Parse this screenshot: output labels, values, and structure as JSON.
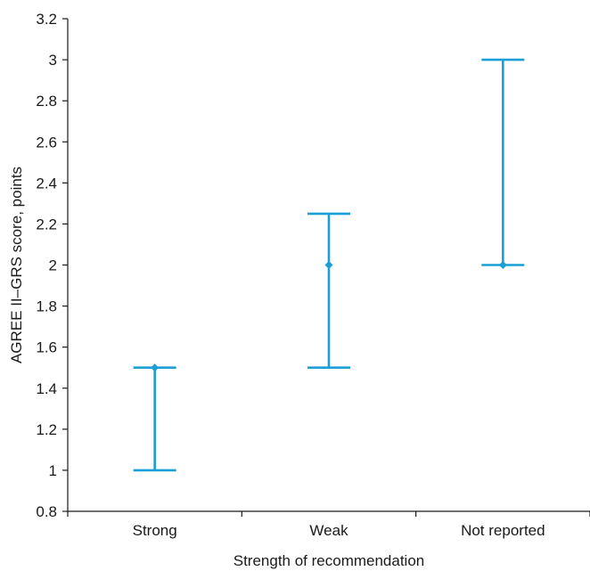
{
  "chart_data": {
    "type": "error-bar",
    "title": "",
    "xlabel": "Strength of recommendation",
    "ylabel": "AGREE II–GRS score, points",
    "ylim": [
      0.8,
      3.2
    ],
    "yticks": [
      "0.8",
      "1",
      "1.2",
      "1.4",
      "1.6",
      "1.8",
      "2",
      "2.2",
      "2.4",
      "2.6",
      "2.8",
      "3",
      "3.2"
    ],
    "categories": [
      "Strong",
      "Weak",
      "Not reported"
    ],
    "points": [
      {
        "category": "Strong",
        "center": 1.5,
        "low": 1.0,
        "high": 1.5
      },
      {
        "category": "Weak",
        "center": 2.0,
        "low": 1.5,
        "high": 2.25
      },
      {
        "category": "Not reported",
        "center": 2.0,
        "low": 2.0,
        "high": 3.0
      }
    ],
    "color": "#1a9fd6",
    "grid": false,
    "legend": "none"
  }
}
